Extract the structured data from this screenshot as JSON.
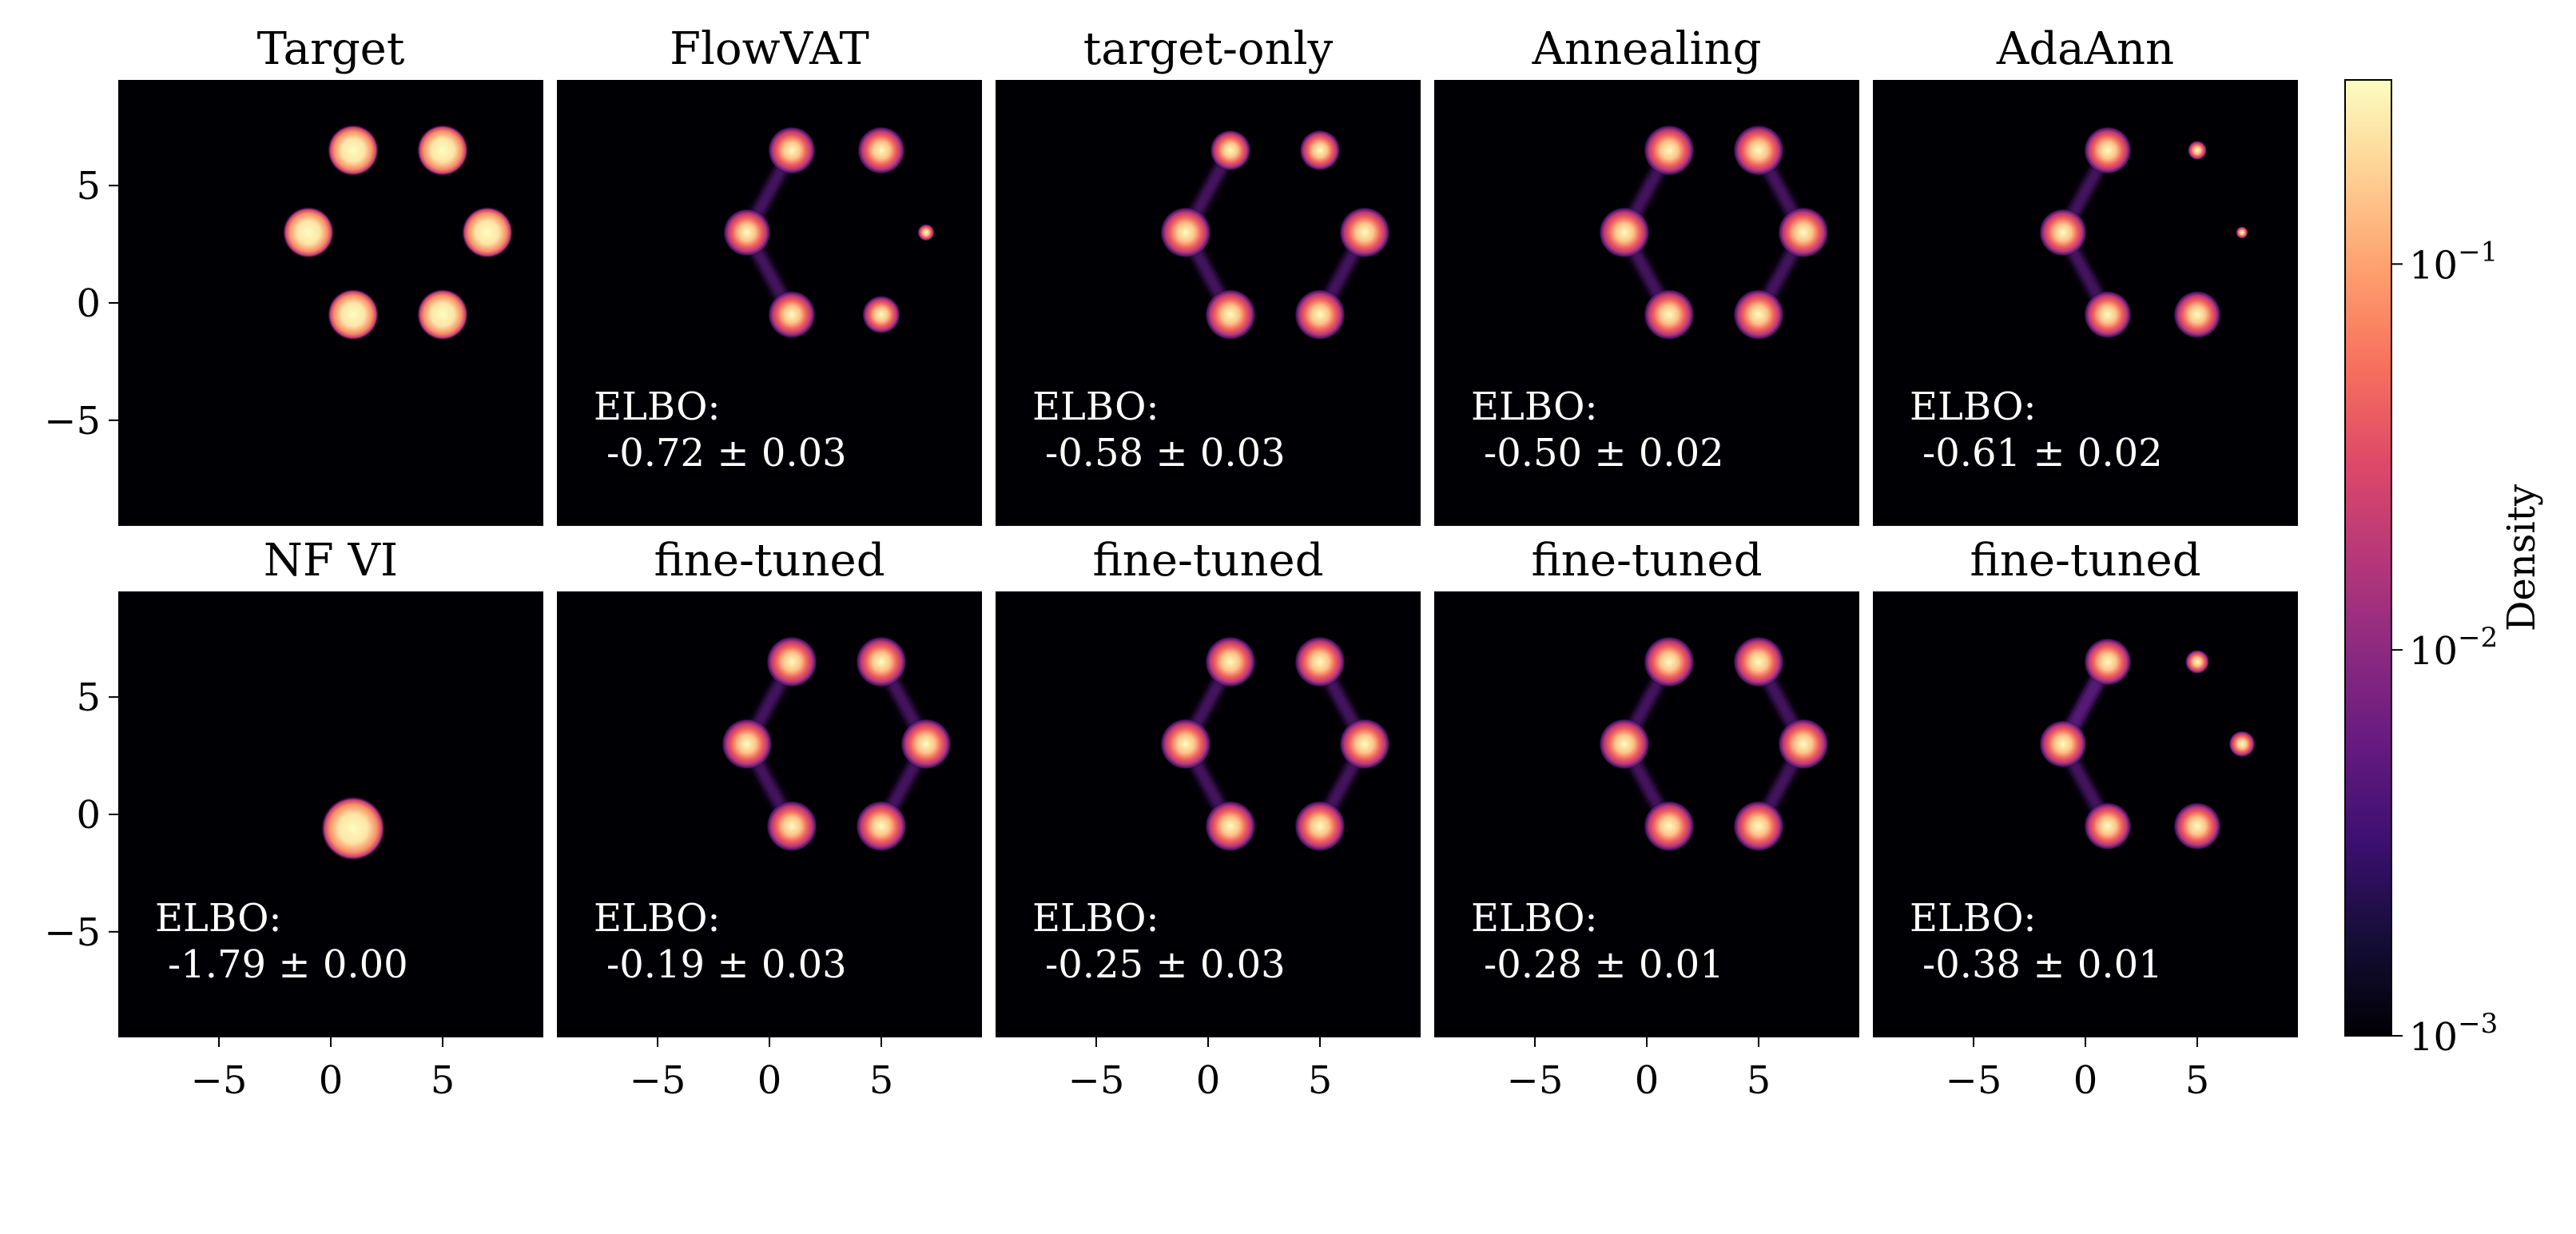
{
  "chart_data": {
    "type": "heatmap",
    "colormap": "magma",
    "colorbar": {
      "label": "Density",
      "scale": "log",
      "range": [
        0.001,
        0.3
      ],
      "ticks": [
        {
          "value": 0.1,
          "base": "10",
          "exp": "−1"
        },
        {
          "value": 0.01,
          "base": "10",
          "exp": "−2"
        },
        {
          "value": 0.001,
          "base": "10",
          "exp": "−3"
        }
      ]
    },
    "axes": {
      "xlim": [
        -9.5,
        9.5
      ],
      "ylim": [
        -9.5,
        9.5
      ],
      "xticks": [
        -5,
        0,
        5
      ],
      "yticks": [
        -5,
        0,
        5
      ],
      "xtick_labels": [
        "−5",
        "0",
        "5"
      ],
      "ytick_labels": [
        "−5",
        "0",
        "5"
      ]
    },
    "panels": [
      {
        "title": "Target",
        "row": 0,
        "col": 0,
        "elbo_label": "",
        "elbo": "",
        "variant": "target"
      },
      {
        "title": "FlowVAT",
        "row": 0,
        "col": 1,
        "elbo_label": "ELBO:",
        "elbo": "-0.72 ± 0.03",
        "variant": "flowvat"
      },
      {
        "title": "target-only",
        "row": 0,
        "col": 2,
        "elbo_label": "ELBO:",
        "elbo": "-0.58 ± 0.03",
        "variant": "targetonly"
      },
      {
        "title": "Annealing",
        "row": 0,
        "col": 3,
        "elbo_label": "ELBO:",
        "elbo": "-0.50 ± 0.02",
        "variant": "annealing"
      },
      {
        "title": "AdaAnn",
        "row": 0,
        "col": 4,
        "elbo_label": "ELBO:",
        "elbo": "-0.61 ± 0.02",
        "variant": "adaann"
      },
      {
        "title": "NF VI",
        "row": 1,
        "col": 0,
        "elbo_label": "ELBO:",
        "elbo": "-1.79 ± 0.00",
        "variant": "nfvi"
      },
      {
        "title": "fine-tuned",
        "row": 1,
        "col": 1,
        "elbo_label": "ELBO:",
        "elbo": "-0.19 ± 0.03",
        "variant": "ft1"
      },
      {
        "title": "fine-tuned",
        "row": 1,
        "col": 2,
        "elbo_label": "ELBO:",
        "elbo": "-0.25 ± 0.03",
        "variant": "ft2"
      },
      {
        "title": "fine-tuned",
        "row": 1,
        "col": 3,
        "elbo_label": "ELBO:",
        "elbo": "-0.28 ± 0.01",
        "variant": "ft3"
      },
      {
        "title": "fine-tuned",
        "row": 1,
        "col": 4,
        "elbo_label": "ELBO:",
        "elbo": "-0.38 ± 0.01",
        "variant": "ft4"
      }
    ],
    "modes": [
      {
        "x": 1,
        "y": 6.5
      },
      {
        "x": 5,
        "y": 6.5
      },
      {
        "x": -1,
        "y": 3
      },
      {
        "x": 7,
        "y": 3
      },
      {
        "x": 1,
        "y": -0.5
      },
      {
        "x": 5,
        "y": -0.5
      }
    ]
  }
}
